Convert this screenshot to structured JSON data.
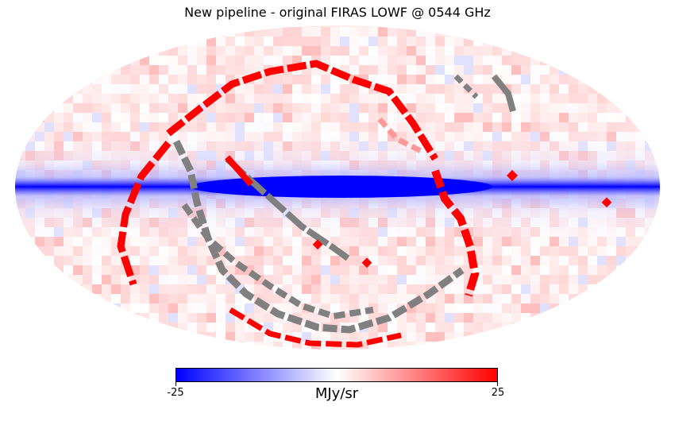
{
  "chart_data": {
    "type": "heatmap",
    "projection": "mollweide",
    "title": "New pipeline - original FIRAS LOWF @ 0544 GHz",
    "colorbar": {
      "min": -25,
      "max": 25,
      "min_label": "-25",
      "max_label": "25",
      "unit": "MJy/sr",
      "colors": [
        "#0000ff",
        "#ffffff",
        "#ff0000"
      ]
    },
    "masked_color": "#808080",
    "features": {
      "galactic_plane_level": -25,
      "background_level": 3,
      "scan_band_level": 25
    }
  },
  "colors": {
    "negative": "#0000ff",
    "neutral": "#ffffff",
    "positive": "#ff0000",
    "masked": "#808080"
  }
}
